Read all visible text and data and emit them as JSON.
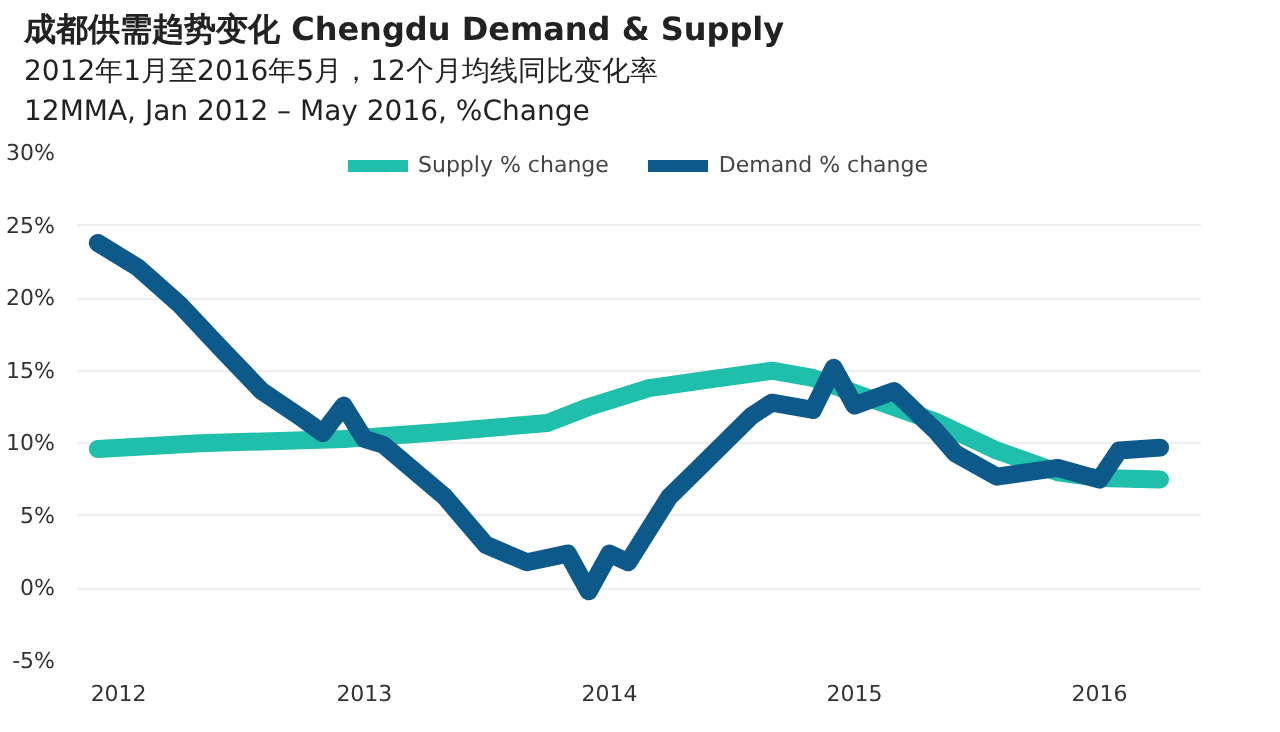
{
  "chart_data": {
    "type": "line",
    "title": "成都供需趋势变化 Chengdu Demand & Supply",
    "subtitle": "2012年1月至2016年5月，12个月均线同比变化率\n12MMA, Jan 2012 – May 2016, %Change",
    "ylim": [
      -5,
      30
    ],
    "yticks": [
      {
        "value": -5,
        "label": "-5%"
      },
      {
        "value": 0,
        "label": "0%"
      },
      {
        "value": 5,
        "label": "5%"
      },
      {
        "value": 10,
        "label": "10%"
      },
      {
        "value": 15,
        "label": "15%"
      },
      {
        "value": 20,
        "label": "20%"
      },
      {
        "value": 25,
        "label": "25%"
      },
      {
        "value": 30,
        "label": "30%"
      }
    ],
    "xlim": [
      "2011-12",
      "2016-07"
    ],
    "xticks": [
      {
        "value": "2012-02",
        "label": "2012"
      },
      {
        "value": "2013-02",
        "label": "2013"
      },
      {
        "value": "2014-02",
        "label": "2014"
      },
      {
        "value": "2015-02",
        "label": "2015"
      },
      {
        "value": "2016-02",
        "label": "2016"
      }
    ],
    "grid": "y",
    "legend": "top",
    "line_style": "solid",
    "series": [
      {
        "name": "Supply % change",
        "color": "#20bfac",
        "x": [
          "2012-01",
          "2012-06",
          "2013-01",
          "2013-06",
          "2013-11",
          "2014-01",
          "2014-04",
          "2014-07",
          "2014-10",
          "2014-12",
          "2015-03",
          "2015-06",
          "2015-09",
          "2015-12",
          "2016-02",
          "2016-05"
        ],
        "values": [
          9.6,
          10.0,
          10.3,
          10.8,
          11.4,
          12.5,
          13.8,
          14.4,
          15.0,
          14.5,
          13.0,
          11.5,
          9.5,
          8.0,
          7.6,
          7.5
        ]
      },
      {
        "name": "Demand % change",
        "color": "#0d5a8a",
        "x": [
          "2012-01",
          "2012-03",
          "2012-05",
          "2012-07",
          "2012-09",
          "2012-11",
          "2012-12",
          "2013-01",
          "2013-02",
          "2013-03",
          "2013-06",
          "2013-08",
          "2013-10",
          "2013-12",
          "2014-01",
          "2014-02",
          "2014-03",
          "2014-05",
          "2014-06",
          "2014-09",
          "2014-10",
          "2014-12",
          "2015-01",
          "2015-02",
          "2015-04",
          "2015-06",
          "2015-07",
          "2015-09",
          "2015-12",
          "2016-02",
          "2016-03",
          "2016-05"
        ],
        "values": [
          23.8,
          22.1,
          19.6,
          16.6,
          13.6,
          11.7,
          10.7,
          12.6,
          10.3,
          9.9,
          6.3,
          3.0,
          1.8,
          2.4,
          -0.2,
          2.4,
          1.8,
          6.3,
          7.7,
          11.9,
          12.8,
          12.3,
          15.2,
          12.6,
          13.6,
          10.9,
          9.3,
          7.7,
          8.3,
          7.5,
          9.5,
          9.7
        ]
      }
    ]
  }
}
